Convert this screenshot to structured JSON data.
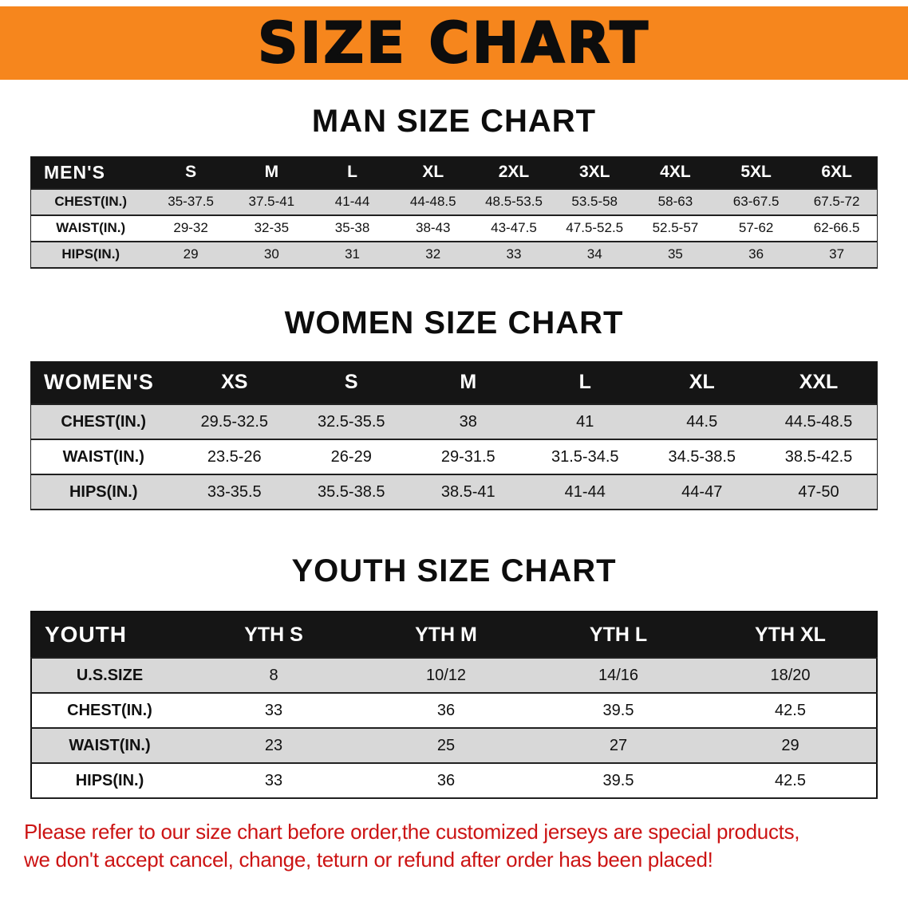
{
  "banner": {
    "title": "SIZE CHART"
  },
  "colors": {
    "banner_bg": "#f6861d",
    "header_bg": "#151515",
    "row_alt": "#d8d8d8",
    "disclaimer": "#cc1414"
  },
  "chart_data": [
    {
      "type": "table",
      "title": "MAN SIZE CHART",
      "corner_label": "MEN'S",
      "columns": [
        "S",
        "M",
        "L",
        "XL",
        "2XL",
        "3XL",
        "4XL",
        "5XL",
        "6XL"
      ],
      "rows": [
        {
          "label": "CHEST(IN.)",
          "values": [
            "35-37.5",
            "37.5-41",
            "41-44",
            "44-48.5",
            "48.5-53.5",
            "53.5-58",
            "58-63",
            "63-67.5",
            "67.5-72"
          ]
        },
        {
          "label": "WAIST(IN.)",
          "values": [
            "29-32",
            "32-35",
            "35-38",
            "38-43",
            "43-47.5",
            "47.5-52.5",
            "52.5-57",
            "57-62",
            "62-66.5"
          ]
        },
        {
          "label": "HIPS(IN.)",
          "values": [
            "29",
            "30",
            "31",
            "32",
            "33",
            "34",
            "35",
            "36",
            "37"
          ]
        }
      ]
    },
    {
      "type": "table",
      "title": "WOMEN SIZE CHART",
      "corner_label": "WOMEN'S",
      "columns": [
        "XS",
        "S",
        "M",
        "L",
        "XL",
        "XXL"
      ],
      "rows": [
        {
          "label": "CHEST(IN.)",
          "values": [
            "29.5-32.5",
            "32.5-35.5",
            "38",
            "41",
            "44.5",
            "44.5-48.5"
          ]
        },
        {
          "label": "WAIST(IN.)",
          "values": [
            "23.5-26",
            "26-29",
            "29-31.5",
            "31.5-34.5",
            "34.5-38.5",
            "38.5-42.5"
          ]
        },
        {
          "label": "HIPS(IN.)",
          "values": [
            "33-35.5",
            "35.5-38.5",
            "38.5-41",
            "41-44",
            "44-47",
            "47-50"
          ]
        }
      ]
    },
    {
      "type": "table",
      "title": "YOUTH SIZE CHART",
      "corner_label": "YOUTH",
      "columns": [
        "YTH S",
        "YTH M",
        "YTH L",
        "YTH XL"
      ],
      "rows": [
        {
          "label": "U.S.SIZE",
          "values": [
            "8",
            "10/12",
            "14/16",
            "18/20"
          ]
        },
        {
          "label": "CHEST(IN.)",
          "values": [
            "33",
            "36",
            "39.5",
            "42.5"
          ]
        },
        {
          "label": "WAIST(IN.)",
          "values": [
            "23",
            "25",
            "27",
            "29"
          ]
        },
        {
          "label": "HIPS(IN.)",
          "values": [
            "33",
            "36",
            "39.5",
            "42.5"
          ]
        }
      ]
    }
  ],
  "disclaimer": {
    "lines": [
      "Please refer to our size chart before order,the customized jerseys are special products,",
      "we don't accept cancel, change, teturn or refund after order has been placed!"
    ]
  }
}
